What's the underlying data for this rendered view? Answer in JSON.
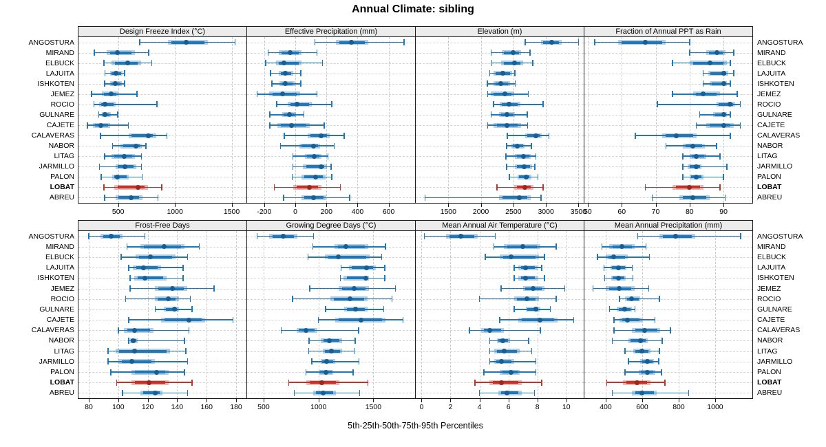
{
  "chart_data": {
    "type": "scatter",
    "subtype": "percentile-dotplot-trellis",
    "title": "Annual Climate: sibling",
    "xlabel": "5th-25th-50th-75th-95th Percentiles",
    "percentiles": [
      5,
      25,
      50,
      75,
      95
    ],
    "grid": "dashed",
    "legend_position": "none",
    "highlight_site": "LOBAT",
    "colors": {
      "series": "#2176B5",
      "series_dot": "#175E94",
      "highlight": "#BF3328",
      "highlight_dot": "#9E261D",
      "header_bg": "#ececec",
      "gridline": "#c9c9c9",
      "border": "#1a1a1a"
    },
    "sites": [
      "ANGOSTURA",
      "MIRAND",
      "ELBUCK",
      "LAJUITA",
      "ISHKOTEN",
      "JEMEZ",
      "ROCIO",
      "GULNARE",
      "CAJETE",
      "CALAVERAS",
      "NABOR",
      "LITAG",
      "JARMILLO",
      "PALON",
      "LOBAT",
      "ABREU"
    ],
    "panels": [
      {
        "title": "Design Freeze Index (°C)",
        "ticks": [
          500,
          1000,
          1500
        ],
        "xlim": [
          150,
          1630
        ],
        "values": {
          "ANGOSTURA": [
            690,
            940,
            1100,
            1290,
            1530
          ],
          "MIRAND": [
            290,
            400,
            490,
            645,
            770
          ],
          "ELBUCK": [
            375,
            440,
            585,
            705,
            795
          ],
          "LAJUITA": [
            385,
            430,
            480,
            540,
            555
          ],
          "ISHKOTEN": [
            380,
            430,
            475,
            535,
            555
          ],
          "JEMEZ": [
            265,
            355,
            440,
            500,
            665
          ],
          "ROCIO": [
            285,
            330,
            385,
            475,
            840
          ],
          "GULNARE": [
            330,
            355,
            385,
            435,
            495
          ],
          "CAJETE": [
            230,
            280,
            345,
            430,
            590
          ],
          "CALAVERAS": [
            345,
            590,
            765,
            835,
            930
          ],
          "NABOR": [
            450,
            520,
            655,
            710,
            745
          ],
          "LITAG": [
            380,
            440,
            555,
            645,
            705
          ],
          "JARMILLO": [
            335,
            475,
            560,
            660,
            705
          ],
          "PALON": [
            350,
            450,
            495,
            595,
            710
          ],
          "LOBAT": [
            375,
            465,
            675,
            760,
            885
          ],
          "ABREU": [
            380,
            475,
            615,
            715,
            850
          ]
        }
      },
      {
        "title": "Effective Precipitation (mm)",
        "ticks": [
          -200,
          0,
          200,
          400,
          600
        ],
        "xlim": [
          -310,
          770
        ],
        "values": {
          "ANGOSTURA": [
            125,
            260,
            360,
            470,
            700
          ],
          "MIRAND": [
            -175,
            -105,
            -35,
            40,
            140
          ],
          "ELBUCK": [
            -190,
            -125,
            -75,
            40,
            175
          ],
          "LAJUITA": [
            -160,
            -105,
            -65,
            -15,
            35
          ],
          "ISHKOTEN": [
            -150,
            -100,
            -65,
            -5,
            35
          ],
          "JEMEZ": [
            -245,
            -170,
            -80,
            30,
            140
          ],
          "ROCIO": [
            -120,
            -50,
            10,
            105,
            235
          ],
          "GULNARE": [
            -165,
            -85,
            -40,
            5,
            55
          ],
          "CAJETE": [
            -165,
            -115,
            -25,
            95,
            185
          ],
          "CALAVERAS": [
            -70,
            80,
            165,
            220,
            315
          ],
          "NABOR": [
            -95,
            25,
            115,
            160,
            250
          ],
          "LITAG": [
            -15,
            60,
            120,
            170,
            210
          ],
          "JARMILLO": [
            -15,
            50,
            165,
            205,
            230
          ],
          "PALON": [
            -20,
            40,
            130,
            195,
            235
          ],
          "LOBAT": [
            -135,
            -15,
            90,
            170,
            290
          ],
          "ABREU": [
            -75,
            40,
            115,
            200,
            350
          ]
        }
      },
      {
        "title": "Elevation (m)",
        "ticks": [
          1500,
          2000,
          2500,
          3000,
          3500
        ],
        "xlim": [
          1000,
          3580
        ],
        "values": {
          "ANGOSTURA": [
            2680,
            2920,
            3090,
            3240,
            3500
          ],
          "MIRAND": [
            2160,
            2320,
            2500,
            2620,
            2755
          ],
          "ELBUCK": [
            2170,
            2315,
            2515,
            2650,
            2800
          ],
          "LAJUITA": [
            2135,
            2195,
            2335,
            2480,
            2520
          ],
          "ISHKOTEN": [
            2100,
            2195,
            2310,
            2450,
            2530
          ],
          "JEMEZ": [
            2105,
            2150,
            2370,
            2515,
            2730
          ],
          "ROCIO": [
            2195,
            2285,
            2430,
            2605,
            2955
          ],
          "GULNARE": [
            2160,
            2280,
            2405,
            2520,
            2715
          ],
          "CAJETE": [
            2105,
            2195,
            2405,
            2620,
            2720
          ],
          "CALAVERAS": [
            2405,
            2685,
            2840,
            2930,
            3045
          ],
          "NABOR": [
            2395,
            2465,
            2560,
            2675,
            2775
          ],
          "LITAG": [
            2385,
            2520,
            2655,
            2770,
            2845
          ],
          "JARMILLO": [
            2395,
            2520,
            2665,
            2785,
            2830
          ],
          "PALON": [
            2440,
            2565,
            2700,
            2775,
            2875
          ],
          "LOBAT": [
            2250,
            2515,
            2675,
            2805,
            2955
          ],
          "ABREU": [
            1145,
            2280,
            2595,
            2770,
            2925
          ]
        }
      },
      {
        "title": "Fraction of Annual PPT as Rain",
        "ticks": [
          50,
          60,
          70,
          80,
          90
        ],
        "xlim": [
          49,
          98.5
        ],
        "values": {
          "ANGOSTURA": [
            52,
            59,
            67,
            73,
            80
          ],
          "MIRAND": [
            80,
            85,
            88,
            90.5,
            93
          ],
          "ELBUCK": [
            75,
            80,
            86,
            91,
            92
          ],
          "LAJUITA": [
            84,
            85.5,
            90,
            91.5,
            93
          ],
          "ISHKOTEN": [
            84,
            86,
            90,
            91,
            92
          ],
          "JEMEZ": [
            75,
            81,
            84,
            89,
            94
          ],
          "ROCIO": [
            70.5,
            88,
            92,
            93.5,
            95
          ],
          "GULNARE": [
            83,
            87,
            90,
            91,
            92
          ],
          "CAJETE": [
            82,
            85,
            90,
            93,
            95
          ],
          "CALAVERAS": [
            64,
            72,
            76,
            82,
            92
          ],
          "NABOR": [
            73,
            78,
            81,
            84.5,
            88
          ],
          "LITAG": [
            78,
            80,
            82,
            85,
            89
          ],
          "JARMILLO": [
            78,
            79.5,
            82,
            83.5,
            91
          ],
          "PALON": [
            78,
            80,
            82,
            84,
            90
          ],
          "LOBAT": [
            67,
            75,
            80,
            84,
            89
          ],
          "ABREU": [
            69,
            77,
            81,
            86,
            90.5
          ]
        }
      },
      {
        "title": "Frost-Free Days",
        "ticks": [
          80,
          100,
          120,
          140,
          160,
          180
        ],
        "xlim": [
          73,
          187
        ],
        "values": {
          "ANGOSTURA": [
            80,
            88,
            95,
            103,
            118
          ],
          "MIRAND": [
            106,
            115,
            131,
            145,
            155
          ],
          "ELBUCK": [
            102,
            112,
            122,
            139,
            147
          ],
          "LAJUITA": [
            107,
            110,
            117,
            129,
            144
          ],
          "ISHKOTEN": [
            108,
            111,
            118,
            133,
            144
          ],
          "JEMEZ": [
            108,
            125,
            137,
            147,
            165
          ],
          "ROCIO": [
            105,
            125,
            134,
            141,
            149
          ],
          "GULNARE": [
            125,
            131,
            138,
            141,
            150
          ],
          "CAJETE": [
            107,
            129,
            148,
            159,
            178
          ],
          "CALAVERAS": [
            100,
            104,
            111,
            124,
            148
          ],
          "NABOR": [
            107,
            108,
            110,
            113,
            145
          ],
          "LITAG": [
            93,
            98,
            111,
            135,
            146
          ],
          "JARMILLO": [
            93,
            100,
            109,
            125,
            147
          ],
          "PALON": [
            95,
            109,
            126,
            134,
            145
          ],
          "LOBAT": [
            99,
            109,
            121,
            134,
            150
          ],
          "ABREU": [
            103,
            115,
            125,
            130,
            147
          ]
        }
      },
      {
        "title": "Growing Degree Days (°C)",
        "ticks": [
          500,
          1000,
          1500
        ],
        "xlim": [
          350,
          1880
        ],
        "values": {
          "ANGOSTURA": [
            440,
            550,
            680,
            810,
            955
          ],
          "MIRAND": [
            950,
            1145,
            1250,
            1455,
            1610
          ],
          "ELBUCK": [
            905,
            1060,
            1180,
            1465,
            1575
          ],
          "LAJUITA": [
            1205,
            1275,
            1440,
            1525,
            1605
          ],
          "ISHKOTEN": [
            1200,
            1230,
            1430,
            1460,
            1605
          ],
          "JEMEZ": [
            920,
            1185,
            1325,
            1460,
            1700
          ],
          "ROCIO": [
            765,
            1110,
            1290,
            1450,
            1670
          ],
          "GULNARE": [
            1065,
            1235,
            1340,
            1450,
            1595
          ],
          "CAJETE": [
            1000,
            1155,
            1390,
            1610,
            1770
          ],
          "CALAVERAS": [
            660,
            800,
            885,
            990,
            1365
          ],
          "NABOR": [
            915,
            1020,
            1100,
            1215,
            1335
          ],
          "LITAG": [
            910,
            1040,
            1115,
            1215,
            1325
          ],
          "JARMILLO": [
            940,
            1020,
            1075,
            1150,
            1370
          ],
          "PALON": [
            885,
            1000,
            1065,
            1135,
            1315
          ],
          "LOBAT": [
            730,
            890,
            1030,
            1190,
            1450
          ],
          "ABREU": [
            780,
            950,
            1040,
            1160,
            1375
          ]
        }
      },
      {
        "title": "Mean Annual Air Temperature (°C)",
        "ticks": [
          0,
          2,
          4,
          6,
          8,
          10
        ],
        "xlim": [
          -0.4,
          11.2
        ],
        "values": {
          "ANGOSTURA": [
            0.2,
            1.7,
            2.7,
            3.9,
            5.1
          ],
          "MIRAND": [
            5.0,
            5.7,
            7.0,
            8.2,
            9.3
          ],
          "ELBUCK": [
            4.4,
            5.4,
            6.2,
            8.1,
            8.5
          ],
          "LAJUITA": [
            6.4,
            6.7,
            7.2,
            8.0,
            8.3
          ],
          "ISHKOTEN": [
            6.4,
            6.7,
            7.2,
            8.0,
            8.5
          ],
          "JEMEZ": [
            5.5,
            7.0,
            7.7,
            8.5,
            9.9
          ],
          "ROCIO": [
            4.0,
            6.4,
            7.3,
            8.1,
            9.3
          ],
          "GULNARE": [
            6.4,
            7.2,
            7.9,
            8.2,
            8.9
          ],
          "CAJETE": [
            5.4,
            6.7,
            8.2,
            9.4,
            10.5
          ],
          "CALAVERAS": [
            3.3,
            4.1,
            4.7,
            5.7,
            8.2
          ],
          "NABOR": [
            4.7,
            5.2,
            5.6,
            6.1,
            7.4
          ],
          "LITAG": [
            4.7,
            5.0,
            5.7,
            6.8,
            7.6
          ],
          "JARMILLO": [
            4.7,
            5.0,
            5.5,
            6.4,
            7.9
          ],
          "PALON": [
            4.3,
            5.4,
            6.2,
            6.8,
            7.9
          ],
          "LOBAT": [
            3.7,
            4.7,
            5.5,
            6.9,
            8.3
          ],
          "ABREU": [
            4.0,
            5.3,
            5.9,
            6.9,
            7.8
          ]
        }
      },
      {
        "title": "Mean Annual Precipitation (mm)",
        "ticks": [
          400,
          600,
          800,
          1000
        ],
        "xlim": [
          283,
          1204
        ],
        "values": {
          "ANGOSTURA": [
            575,
            695,
            785,
            890,
            1140
          ],
          "MIRAND": [
            380,
            420,
            490,
            560,
            620
          ],
          "ELBUCK": [
            355,
            400,
            445,
            520,
            640
          ],
          "LAJUITA": [
            390,
            425,
            470,
            515,
            545
          ],
          "ISHKOTEN": [
            395,
            430,
            470,
            510,
            550
          ],
          "JEMEZ": [
            330,
            400,
            475,
            560,
            635
          ],
          "ROCIO": [
            475,
            505,
            540,
            590,
            695
          ],
          "GULNARE": [
            420,
            460,
            505,
            545,
            560
          ],
          "CAJETE": [
            445,
            475,
            520,
            600,
            670
          ],
          "CALAVERAS": [
            445,
            545,
            615,
            700,
            755
          ],
          "NABOR": [
            435,
            525,
            590,
            630,
            710
          ],
          "LITAG": [
            505,
            550,
            600,
            645,
            695
          ],
          "JARMILLO": [
            525,
            590,
            630,
            665,
            690
          ],
          "PALON": [
            505,
            580,
            630,
            670,
            705
          ],
          "LOBAT": [
            405,
            495,
            570,
            645,
            725
          ],
          "ABREU": [
            435,
            545,
            600,
            680,
            855
          ]
        }
      }
    ]
  }
}
